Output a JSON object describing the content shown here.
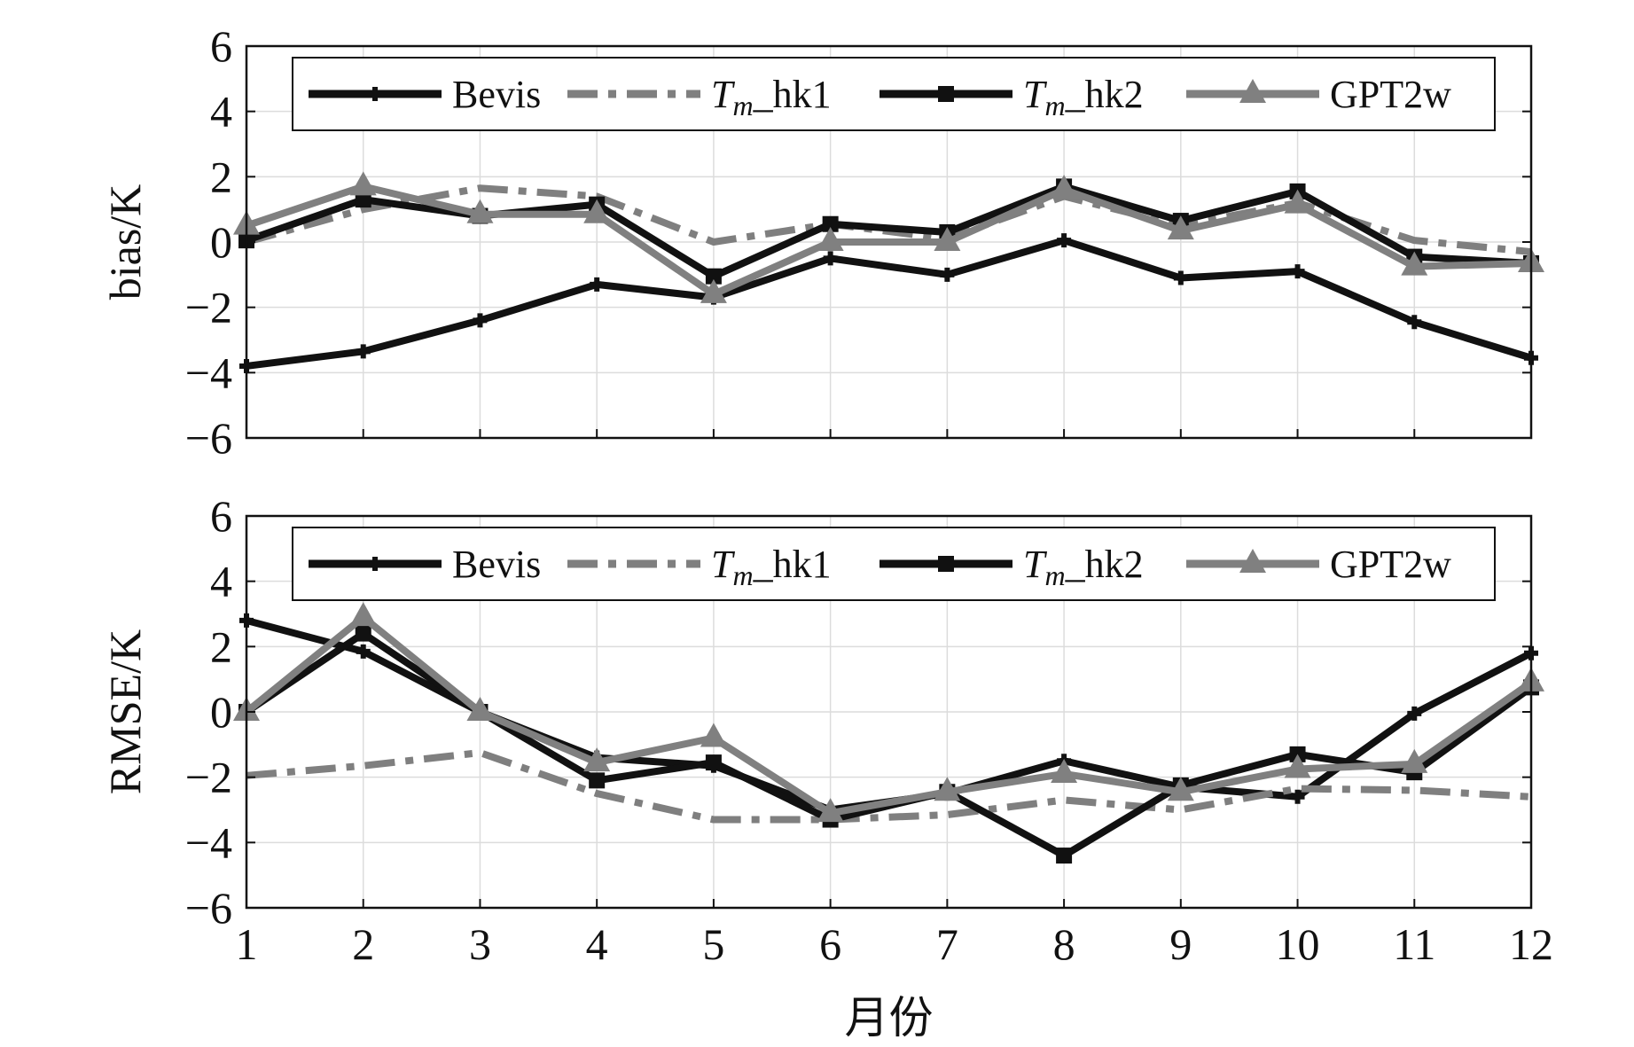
{
  "chart_data": [
    {
      "type": "line",
      "ylabel": "bias/K",
      "ylim": [
        -6,
        6
      ],
      "yticks": [
        6,
        4,
        2,
        0,
        -2,
        -4,
        -6
      ],
      "yticks_text": [
        "6",
        "4",
        "2",
        "0",
        "−2",
        "−4",
        "−6"
      ],
      "xlim": [
        1,
        12
      ],
      "x": [
        1,
        2,
        3,
        4,
        5,
        6,
        7,
        8,
        9,
        10,
        11,
        12
      ],
      "grid": true,
      "legend_position": "top",
      "series": [
        {
          "name": "Bevis",
          "color": "#111111",
          "style": "solid",
          "marker": "plus-square",
          "values": [
            -3.8,
            -3.35,
            -2.4,
            -1.3,
            -1.7,
            -0.5,
            -1.0,
            0.05,
            -1.1,
            -0.9,
            -2.45,
            -3.55
          ]
        },
        {
          "name": "hk1",
          "legend_prefix": "T",
          "legend_sub": "m",
          "legend_suffix": "_hk1",
          "color": "#7f7f7f",
          "style": "dash-dot",
          "marker": "none",
          "values": [
            0.0,
            1.0,
            1.65,
            1.4,
            0.0,
            0.55,
            0.1,
            1.4,
            0.5,
            1.2,
            0.05,
            -0.3
          ]
        },
        {
          "name": "hk2",
          "legend_prefix": "T",
          "legend_sub": "m",
          "legend_suffix": "_hk2",
          "color": "#111111",
          "style": "solid",
          "marker": "square",
          "values": [
            0.05,
            1.3,
            0.8,
            1.15,
            -1.05,
            0.55,
            0.3,
            1.7,
            0.65,
            1.55,
            -0.45,
            -0.65
          ]
        },
        {
          "name": "GPT2w",
          "color": "#808080",
          "style": "solid",
          "marker": "triangle",
          "values": [
            0.5,
            1.7,
            0.85,
            0.85,
            -1.6,
            0.0,
            0.0,
            1.6,
            0.35,
            1.15,
            -0.75,
            -0.65
          ]
        }
      ]
    },
    {
      "type": "line",
      "ylabel": "RMSE/K",
      "ylim": [
        -6,
        6
      ],
      "yticks": [
        6,
        4,
        2,
        0,
        -2,
        -4,
        -6
      ],
      "yticks_text": [
        "6",
        "4",
        "2",
        "0",
        "−2",
        "−4",
        "−6"
      ],
      "xlim": [
        1,
        12
      ],
      "x": [
        1,
        2,
        3,
        4,
        5,
        6,
        7,
        8,
        9,
        10,
        11,
        12
      ],
      "xlabel": "月份",
      "xticks_text": [
        "1",
        "2",
        "3",
        "4",
        "5",
        "6",
        "7",
        "8",
        "9",
        "10",
        "11",
        "12"
      ],
      "grid": true,
      "legend_position": "top",
      "series": [
        {
          "name": "Bevis",
          "color": "#111111",
          "style": "solid",
          "marker": "plus-square",
          "values": [
            2.8,
            1.85,
            0.0,
            -1.4,
            -1.65,
            -3.0,
            -2.5,
            -1.5,
            -2.3,
            -2.6,
            -0.05,
            1.8
          ]
        },
        {
          "name": "hk1",
          "legend_prefix": "T",
          "legend_sub": "m",
          "legend_suffix": "_hk1",
          "color": "#7f7f7f",
          "style": "dash-dot",
          "marker": "none",
          "values": [
            -1.95,
            -1.65,
            -1.25,
            -2.5,
            -3.3,
            -3.3,
            -3.15,
            -2.7,
            -3.0,
            -2.35,
            -2.4,
            -2.6
          ]
        },
        {
          "name": "hk2",
          "legend_prefix": "T",
          "legend_sub": "m",
          "legend_suffix": "_hk2",
          "color": "#111111",
          "style": "solid",
          "marker": "square",
          "values": [
            0.0,
            2.4,
            0.0,
            -2.1,
            -1.55,
            -3.3,
            -2.45,
            -4.4,
            -2.25,
            -1.3,
            -1.85,
            0.75
          ]
        },
        {
          "name": "GPT2w",
          "color": "#808080",
          "style": "solid",
          "marker": "triangle",
          "values": [
            0.0,
            2.9,
            0.0,
            -1.55,
            -0.8,
            -3.1,
            -2.45,
            -1.9,
            -2.45,
            -1.75,
            -1.6,
            0.9
          ]
        }
      ]
    }
  ]
}
